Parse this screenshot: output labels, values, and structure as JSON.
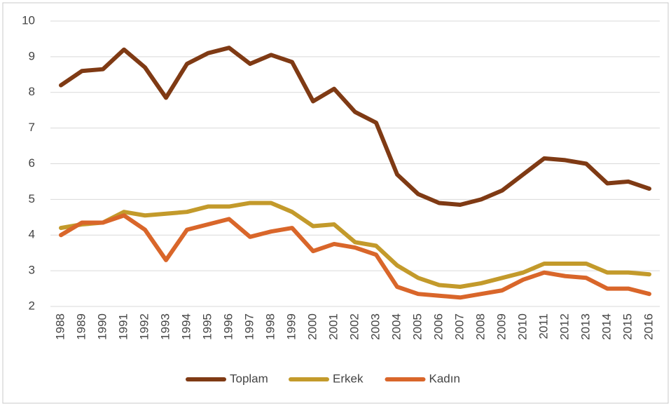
{
  "chart_data": {
    "type": "line",
    "categories": [
      "1988",
      "1989",
      "1990",
      "1991",
      "1992",
      "1993",
      "1994",
      "1995",
      "1996",
      "1997",
      "1998",
      "1999",
      "2000",
      "2001",
      "2002",
      "2003",
      "2004",
      "2005",
      "2006",
      "2007",
      "2008",
      "2009",
      "2010",
      "2011",
      "2012",
      "2013",
      "2014",
      "2015",
      "2016"
    ],
    "series": [
      {
        "name": "Toplam",
        "color": "#7f3a14",
        "values": [
          8.2,
          8.6,
          8.65,
          9.2,
          8.7,
          7.85,
          8.8,
          9.1,
          9.25,
          8.8,
          9.05,
          8.85,
          7.75,
          8.1,
          7.45,
          7.15,
          5.7,
          5.15,
          4.9,
          4.85,
          5.0,
          5.25,
          5.7,
          6.15,
          6.1,
          6.0,
          5.45,
          5.5,
          5.3
        ]
      },
      {
        "name": "Erkek",
        "color": "#c39a2b",
        "values": [
          4.2,
          4.3,
          4.35,
          4.65,
          4.55,
          4.6,
          4.65,
          4.8,
          4.8,
          4.9,
          4.9,
          4.65,
          4.25,
          4.3,
          3.8,
          3.7,
          3.15,
          2.8,
          2.6,
          2.55,
          2.65,
          2.8,
          2.95,
          3.2,
          3.2,
          3.2,
          2.95,
          2.95,
          2.9
        ]
      },
      {
        "name": "Kadın",
        "color": "#d9662a",
        "values": [
          4.0,
          4.35,
          4.35,
          4.55,
          4.15,
          3.3,
          4.15,
          4.3,
          4.45,
          3.95,
          4.1,
          4.2,
          3.55,
          3.75,
          3.65,
          3.45,
          2.55,
          2.35,
          2.3,
          2.25,
          2.35,
          2.45,
          2.75,
          2.95,
          2.85,
          2.8,
          2.5,
          2.5,
          2.35
        ]
      }
    ],
    "ylim": [
      2,
      10
    ],
    "yticks": [
      2,
      3,
      4,
      5,
      6,
      7,
      8,
      9,
      10
    ],
    "grid": true,
    "legend": "bottom"
  }
}
